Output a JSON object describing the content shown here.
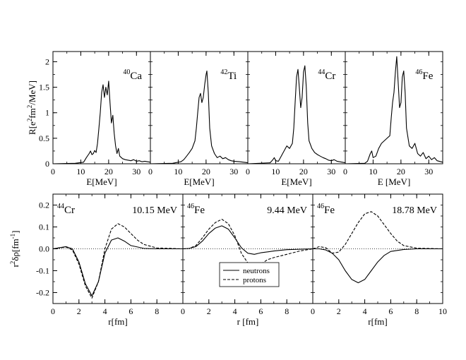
{
  "chart_data": [
    {
      "type": "line",
      "panel_label": "40Ca",
      "nucleus": {
        "sup": "40",
        "sym": "Ca"
      },
      "xlabel": "E[MeV]",
      "ylabel": "R[e2fm2/MeV]",
      "xlim": [
        0,
        35
      ],
      "ylim": [
        0,
        2.2
      ],
      "xticks": [
        0,
        10,
        20,
        30
      ],
      "yticks": [
        0,
        0.5,
        1,
        1.5,
        2
      ],
      "series": [
        {
          "values": [
            [
              0,
              0
            ],
            [
              8,
              0.01
            ],
            [
              11,
              0.03
            ],
            [
              12,
              0.12
            ],
            [
              13,
              0.2
            ],
            [
              13.5,
              0.25
            ],
            [
              14,
              0.18
            ],
            [
              14.5,
              0.2
            ],
            [
              15,
              0.26
            ],
            [
              15.5,
              0.22
            ],
            [
              16,
              0.4
            ],
            [
              16.5,
              0.7
            ],
            [
              17,
              1.0
            ],
            [
              17.5,
              1.4
            ],
            [
              18,
              1.55
            ],
            [
              18.5,
              1.3
            ],
            [
              19,
              1.5
            ],
            [
              19.5,
              1.35
            ],
            [
              20,
              1.62
            ],
            [
              20.5,
              1.2
            ],
            [
              21,
              0.8
            ],
            [
              21.5,
              0.95
            ],
            [
              22,
              0.6
            ],
            [
              22.5,
              0.35
            ],
            [
              23,
              0.2
            ],
            [
              23.5,
              0.3
            ],
            [
              24,
              0.15
            ],
            [
              25,
              0.1
            ],
            [
              26,
              0.08
            ],
            [
              27,
              0.07
            ],
            [
              28,
              0.06
            ],
            [
              29,
              0.08
            ],
            [
              30,
              0.05
            ],
            [
              31,
              0.06
            ],
            [
              32,
              0.04
            ],
            [
              33,
              0.05
            ],
            [
              35,
              0.03
            ]
          ]
        }
      ]
    },
    {
      "type": "line",
      "panel_label": "42Ti",
      "nucleus": {
        "sup": "42",
        "sym": "Ti"
      },
      "xlabel": "E[MeV]",
      "xlim": [
        0,
        35
      ],
      "ylim": [
        0,
        2.2
      ],
      "xticks": [
        0,
        10,
        20,
        30
      ],
      "series": [
        {
          "values": [
            [
              0,
              0
            ],
            [
              8,
              0.01
            ],
            [
              11,
              0.04
            ],
            [
              12,
              0.08
            ],
            [
              13,
              0.15
            ],
            [
              14,
              0.22
            ],
            [
              15,
              0.3
            ],
            [
              16,
              0.45
            ],
            [
              16.5,
              0.7
            ],
            [
              17,
              1.0
            ],
            [
              17.5,
              1.3
            ],
            [
              18,
              1.38
            ],
            [
              18.5,
              1.2
            ],
            [
              19,
              1.3
            ],
            [
              19.5,
              1.55
            ],
            [
              20,
              1.75
            ],
            [
              20.3,
              1.82
            ],
            [
              20.8,
              1.4
            ],
            [
              21.3,
              0.7
            ],
            [
              22,
              0.35
            ],
            [
              23,
              0.2
            ],
            [
              24,
              0.12
            ],
            [
              25,
              0.15
            ],
            [
              26,
              0.1
            ],
            [
              27,
              0.12
            ],
            [
              28,
              0.08
            ],
            [
              29,
              0.06
            ],
            [
              30,
              0.05
            ],
            [
              32,
              0.04
            ],
            [
              35,
              0.02
            ]
          ]
        }
      ]
    },
    {
      "type": "line",
      "panel_label": "44Cr",
      "nucleus": {
        "sup": "44",
        "sym": "Cr"
      },
      "xlabel": "E[MeV]",
      "xlim": [
        0,
        35
      ],
      "ylim": [
        0,
        2.2
      ],
      "xticks": [
        0,
        10,
        20,
        30
      ],
      "series": [
        {
          "values": [
            [
              0,
              0
            ],
            [
              8,
              0.02
            ],
            [
              9,
              0.08
            ],
            [
              9.5,
              0.12
            ],
            [
              10,
              0.06
            ],
            [
              11,
              0.05
            ],
            [
              12,
              0.15
            ],
            [
              13,
              0.25
            ],
            [
              14,
              0.35
            ],
            [
              15,
              0.3
            ],
            [
              16,
              0.4
            ],
            [
              16.5,
              0.7
            ],
            [
              17,
              1.2
            ],
            [
              17.5,
              1.7
            ],
            [
              18,
              1.85
            ],
            [
              18.5,
              1.5
            ],
            [
              19,
              1.1
            ],
            [
              19.5,
              1.3
            ],
            [
              20,
              1.8
            ],
            [
              20.5,
              1.92
            ],
            [
              21,
              1.5
            ],
            [
              21.5,
              0.8
            ],
            [
              22,
              0.45
            ],
            [
              23,
              0.3
            ],
            [
              24,
              0.22
            ],
            [
              25,
              0.18
            ],
            [
              26,
              0.15
            ],
            [
              27,
              0.12
            ],
            [
              28,
              0.1
            ],
            [
              29,
              0.07
            ],
            [
              30,
              0.06
            ],
            [
              31,
              0.08
            ],
            [
              32,
              0.05
            ],
            [
              35,
              0.02
            ]
          ]
        }
      ]
    },
    {
      "type": "line",
      "panel_label": "46Fe",
      "nucleus": {
        "sup": "46",
        "sym": "Fe"
      },
      "xlabel": "E [MeV]",
      "xlim": [
        0,
        35
      ],
      "ylim": [
        0,
        2.2
      ],
      "xticks": [
        0,
        10,
        20,
        30
      ],
      "series": [
        {
          "values": [
            [
              0,
              0
            ],
            [
              7,
              0.01
            ],
            [
              8,
              0.05
            ],
            [
              9,
              0.2
            ],
            [
              9.5,
              0.25
            ],
            [
              10,
              0.12
            ],
            [
              11,
              0.15
            ],
            [
              12,
              0.3
            ],
            [
              13,
              0.4
            ],
            [
              14,
              0.45
            ],
            [
              15,
              0.5
            ],
            [
              16,
              0.55
            ],
            [
              16.5,
              0.9
            ],
            [
              17,
              1.2
            ],
            [
              17.5,
              1.4
            ],
            [
              18,
              1.8
            ],
            [
              18.5,
              2.1
            ],
            [
              19,
              1.6
            ],
            [
              19.5,
              1.1
            ],
            [
              20,
              1.2
            ],
            [
              20.5,
              1.7
            ],
            [
              21,
              1.82
            ],
            [
              21.5,
              1.4
            ],
            [
              22,
              0.7
            ],
            [
              23,
              0.35
            ],
            [
              24,
              0.3
            ],
            [
              25,
              0.4
            ],
            [
              26,
              0.2
            ],
            [
              27,
              0.15
            ],
            [
              28,
              0.22
            ],
            [
              29,
              0.1
            ],
            [
              30,
              0.15
            ],
            [
              31,
              0.08
            ],
            [
              32,
              0.12
            ],
            [
              33,
              0.06
            ],
            [
              35,
              0.03
            ]
          ]
        }
      ]
    },
    {
      "type": "line",
      "nucleus": {
        "sup": "44",
        "sym": "Cr"
      },
      "energy_label": "10.15 MeV",
      "xlabel": "r[fm]",
      "ylabel": "r2δρ[fm-1]",
      "xlim": [
        0,
        10
      ],
      "ylim": [
        -0.25,
        0.25
      ],
      "xticks": [
        0,
        2,
        4,
        6,
        8
      ],
      "yticks": [
        -0.2,
        -0.1,
        0.0,
        0.1,
        0.2
      ],
      "series": [
        {
          "name": "neutrons",
          "style": "solid",
          "values": [
            [
              0,
              0
            ],
            [
              0.5,
              0.005
            ],
            [
              1,
              0.01
            ],
            [
              1.5,
              0.0
            ],
            [
              2,
              -0.06
            ],
            [
              2.5,
              -0.16
            ],
            [
              3,
              -0.215
            ],
            [
              3.5,
              -0.15
            ],
            [
              4,
              -0.02
            ],
            [
              4.5,
              0.04
            ],
            [
              5,
              0.05
            ],
            [
              5.5,
              0.035
            ],
            [
              6,
              0.015
            ],
            [
              7,
              0.002
            ],
            [
              8,
              0
            ],
            [
              10,
              0
            ]
          ]
        },
        {
          "name": "protons",
          "style": "dashed",
          "values": [
            [
              0,
              0
            ],
            [
              0.5,
              0.004
            ],
            [
              1,
              0.008
            ],
            [
              1.5,
              -0.005
            ],
            [
              2,
              -0.07
            ],
            [
              2.5,
              -0.17
            ],
            [
              3,
              -0.225
            ],
            [
              3.5,
              -0.15
            ],
            [
              4,
              0.0
            ],
            [
              4.5,
              0.09
            ],
            [
              5,
              0.115
            ],
            [
              5.5,
              0.1
            ],
            [
              6,
              0.07
            ],
            [
              6.5,
              0.04
            ],
            [
              7,
              0.02
            ],
            [
              8,
              0.004
            ],
            [
              10,
              0
            ]
          ]
        }
      ]
    },
    {
      "type": "line",
      "nucleus": {
        "sup": "46",
        "sym": "Fe"
      },
      "energy_label": "9.44 MeV",
      "xlabel": "r [fm]",
      "xlim": [
        0,
        10
      ],
      "ylim": [
        -0.25,
        0.25
      ],
      "xticks": [
        0,
        2,
        4,
        6,
        8
      ],
      "legend": {
        "position": "bottom-center",
        "entries": [
          "neutrons",
          "protons"
        ]
      },
      "series": [
        {
          "name": "neutrons",
          "style": "solid",
          "values": [
            [
              0,
              0
            ],
            [
              0.5,
              0.002
            ],
            [
              1,
              0.01
            ],
            [
              1.5,
              0.035
            ],
            [
              2,
              0.07
            ],
            [
              2.5,
              0.095
            ],
            [
              3,
              0.105
            ],
            [
              3.5,
              0.09
            ],
            [
              4,
              0.05
            ],
            [
              4.5,
              0.005
            ],
            [
              5,
              -0.02
            ],
            [
              5.5,
              -0.025
            ],
            [
              6,
              -0.018
            ],
            [
              7,
              -0.01
            ],
            [
              8,
              -0.004
            ],
            [
              10,
              0
            ]
          ]
        },
        {
          "name": "protons",
          "style": "dashed",
          "values": [
            [
              0,
              0
            ],
            [
              0.5,
              0.002
            ],
            [
              1,
              0.015
            ],
            [
              1.5,
              0.05
            ],
            [
              2,
              0.09
            ],
            [
              2.5,
              0.12
            ],
            [
              3,
              0.135
            ],
            [
              3.5,
              0.115
            ],
            [
              4,
              0.06
            ],
            [
              4.5,
              -0.02
            ],
            [
              5,
              -0.065
            ],
            [
              5.5,
              -0.085
            ],
            [
              6,
              -0.07
            ],
            [
              6.5,
              -0.05
            ],
            [
              7,
              -0.04
            ],
            [
              8,
              -0.025
            ],
            [
              9,
              -0.01
            ],
            [
              10,
              0
            ]
          ]
        }
      ]
    },
    {
      "type": "line",
      "nucleus": {
        "sup": "46",
        "sym": "Fe"
      },
      "energy_label": "18.78 MeV",
      "xlabel": "r[fm]",
      "xlim": [
        0,
        10
      ],
      "ylim": [
        -0.25,
        0.25
      ],
      "xticks": [
        0,
        2,
        4,
        6,
        8,
        10
      ],
      "series": [
        {
          "name": "neutrons",
          "style": "solid",
          "values": [
            [
              0,
              0
            ],
            [
              0.5,
              0.0
            ],
            [
              1,
              -0.005
            ],
            [
              1.5,
              -0.02
            ],
            [
              2,
              -0.05
            ],
            [
              2.5,
              -0.1
            ],
            [
              3,
              -0.14
            ],
            [
              3.5,
              -0.155
            ],
            [
              4,
              -0.14
            ],
            [
              4.5,
              -0.1
            ],
            [
              5,
              -0.06
            ],
            [
              5.5,
              -0.03
            ],
            [
              6,
              -0.012
            ],
            [
              7,
              -0.003
            ],
            [
              8,
              0
            ],
            [
              10,
              0
            ]
          ]
        },
        {
          "name": "protons",
          "style": "dashed",
          "values": [
            [
              0,
              0
            ],
            [
              0.5,
              0.01
            ],
            [
              1,
              0.005
            ],
            [
              1.5,
              -0.02
            ],
            [
              2,
              -0.015
            ],
            [
              2.5,
              0.02
            ],
            [
              3,
              0.07
            ],
            [
              3.5,
              0.12
            ],
            [
              4,
              0.16
            ],
            [
              4.5,
              0.17
            ],
            [
              5,
              0.15
            ],
            [
              5.5,
              0.11
            ],
            [
              6,
              0.07
            ],
            [
              6.5,
              0.035
            ],
            [
              7,
              0.015
            ],
            [
              8,
              0.003
            ],
            [
              10,
              0
            ]
          ]
        }
      ]
    }
  ]
}
